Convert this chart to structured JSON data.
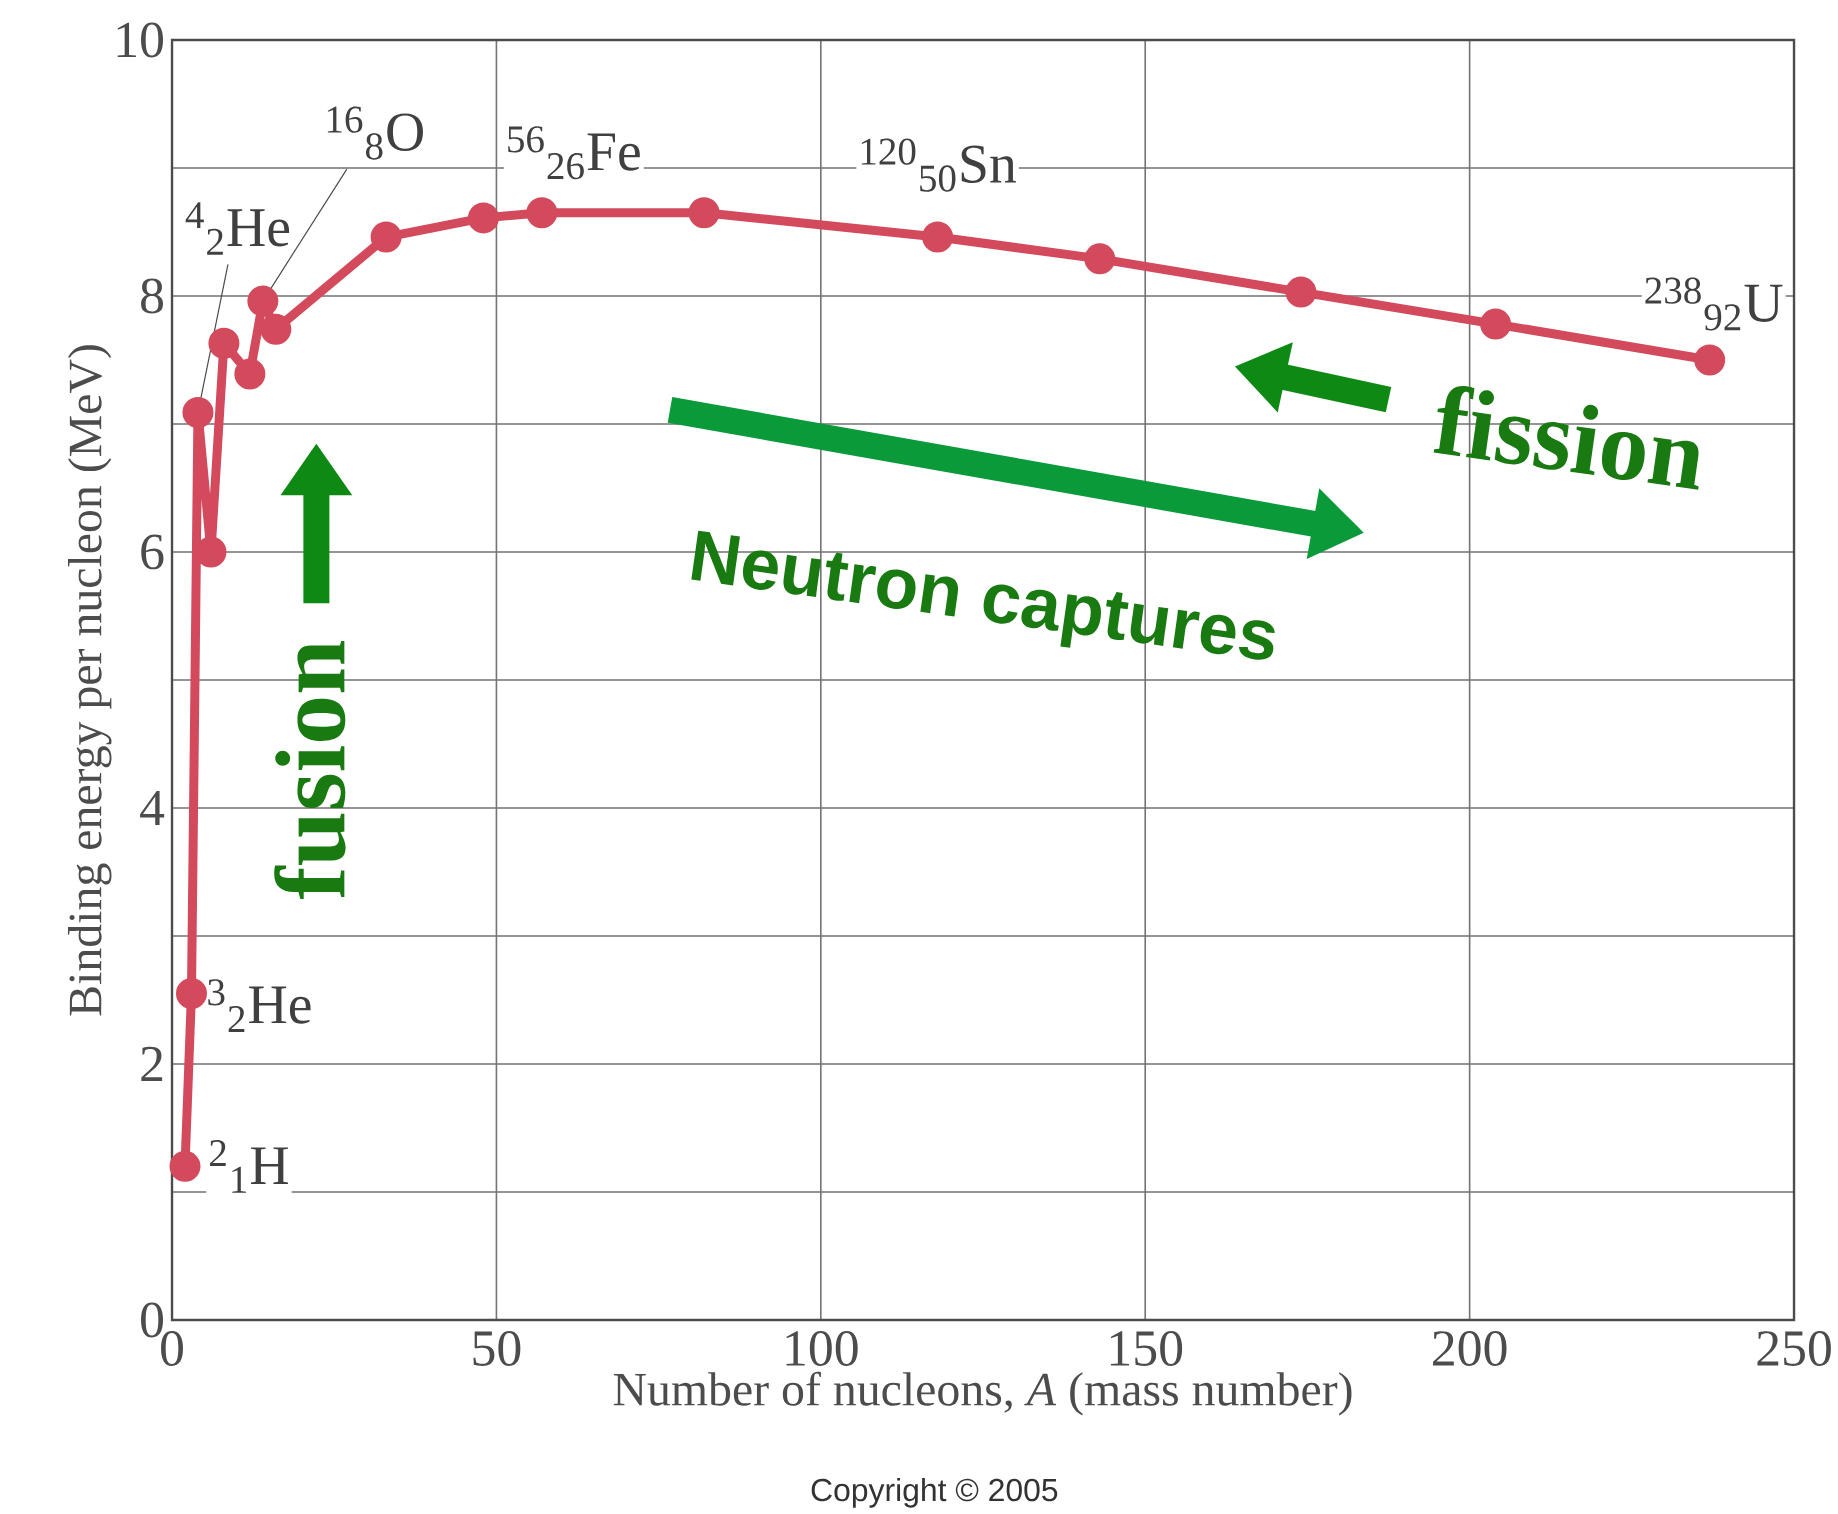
{
  "chart_data": {
    "type": "line",
    "xlabel": "Number of nucleons, *A* (mass number)",
    "ylabel": "Binding energy per nucleon (MeV)",
    "x": [
      2,
      3,
      4,
      6,
      8,
      12,
      14,
      16,
      33,
      48,
      57,
      82,
      118,
      143,
      174,
      204,
      237
    ],
    "series": [
      {
        "color": "#d24a5c",
        "values": [
          1.2,
          2.55,
          7.09,
          6.0,
          7.63,
          7.39,
          7.96,
          7.74,
          8.46,
          8.61,
          8.65,
          8.65,
          8.46,
          8.29,
          8.03,
          7.78,
          7.5
        ]
      }
    ],
    "marker": "circle",
    "line_style": "solid",
    "grid": true,
    "xlim": [
      0,
      250
    ],
    "ylim": [
      0,
      10
    ],
    "xticks": [
      0,
      50,
      100,
      150,
      200,
      250
    ],
    "yticks": [
      0,
      {
        "value": 1,
        "label": null
      },
      2,
      {
        "value": 3,
        "label": null
      },
      4,
      {
        "value": 5,
        "label": null
      },
      6,
      {
        "value": 7,
        "label": null
      },
      8,
      {
        "value": 9,
        "label": null
      },
      10
    ],
    "annotations": [
      {
        "text": "$^{2}$$_{1}$H",
        "x": 2,
        "y": 1.2
      },
      {
        "text": "$^{3}$$_{2}$He",
        "x": 3,
        "y": 2.55
      },
      {
        "text": "$^{4}$$_{2}$He",
        "x": 4,
        "y": 7.09
      },
      {
        "text": "$^{16}$$_{8}$O",
        "x": 14,
        "y": 7.96
      },
      {
        "text": "$^{56}$$_{26}$Fe",
        "x": 57,
        "y": 8.65
      },
      {
        "text": "$^{120}$$_{50}$Sn",
        "x": 118,
        "y": 8.46
      },
      {
        "text": "$^{238}$$_{92}$U",
        "x": 237,
        "y": 7.5
      },
      "fusion",
      "Neutron captures",
      "fission",
      "Copyright © 2005"
    ]
  }
}
